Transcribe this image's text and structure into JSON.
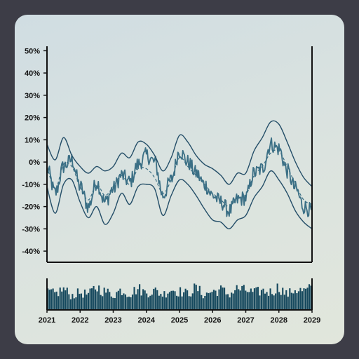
{
  "chart_data": [
    {
      "type": "line",
      "title": "",
      "xlabel": "",
      "ylabel": "",
      "ylim": [
        -45,
        52
      ],
      "yticks": [
        "50%",
        "40%",
        "30%",
        "20%",
        "10%",
        "0%",
        "-10%",
        "-20%",
        "-30%",
        "-40%"
      ],
      "ytick_values": [
        50,
        40,
        30,
        20,
        10,
        0,
        -10,
        -20,
        -30,
        -40
      ],
      "x_domain": [
        2021,
        2029
      ],
      "grid": false,
      "series": [
        {
          "style": "solid-noisy",
          "x": [
            2021.0,
            2021.25,
            2021.5,
            2021.75,
            2022.0,
            2022.25,
            2022.5,
            2022.75,
            2023.0,
            2023.25,
            2023.5,
            2023.75,
            2024.0,
            2024.25,
            2024.5,
            2024.75,
            2025.0,
            2025.25,
            2025.5,
            2025.75,
            2026.0,
            2026.25,
            2026.5,
            2026.75,
            2027.0,
            2027.25,
            2027.5,
            2027.75,
            2028.0,
            2028.25,
            2028.5,
            2028.75,
            2029.0
          ],
          "values": [
            -3,
            -14,
            -2,
            1,
            -11,
            -20,
            -9,
            -18,
            -12,
            -6,
            -9,
            -1,
            3,
            0,
            -15,
            -8,
            5,
            0,
            -5,
            -10,
            -15,
            -18,
            -22,
            -17,
            -16,
            -5,
            -3,
            8,
            6,
            -4,
            -12,
            -20,
            -22
          ]
        },
        {
          "style": "dashed-trend",
          "x": [
            2021.0,
            2021.25,
            2021.5,
            2021.75,
            2022.0,
            2022.25,
            2022.5,
            2022.75,
            2023.0,
            2023.25,
            2023.5,
            2023.75,
            2024.0,
            2024.25,
            2024.5,
            2024.75,
            2025.0,
            2025.25,
            2025.5,
            2025.75,
            2026.0,
            2026.25,
            2026.5,
            2026.75,
            2027.0,
            2027.25,
            2027.5,
            2027.75,
            2028.0,
            2028.25,
            2028.5,
            2028.75,
            2029.0
          ],
          "values": [
            -2,
            -12,
            -1,
            -2,
            -11,
            -17,
            -10,
            -15,
            -11,
            -6,
            -10,
            -3,
            -3,
            -7,
            -14,
            -8,
            2,
            -2,
            -6,
            -10,
            -14,
            -17,
            -20,
            -16,
            -15,
            -6,
            -2,
            4,
            5,
            -2,
            -10,
            -17,
            -19
          ]
        },
        {
          "style": "upper-band",
          "x": [
            2021.0,
            2021.25,
            2021.5,
            2021.75,
            2022.0,
            2022.25,
            2022.5,
            2022.75,
            2023.0,
            2023.25,
            2023.5,
            2023.75,
            2024.0,
            2024.25,
            2024.5,
            2024.75,
            2025.0,
            2025.25,
            2025.5,
            2025.75,
            2026.0,
            2026.25,
            2026.5,
            2026.75,
            2027.0,
            2027.25,
            2027.5,
            2027.75,
            2028.0,
            2028.25,
            2028.5,
            2028.75,
            2029.0
          ],
          "values": [
            8,
            1,
            11,
            3,
            -2,
            -5,
            -2,
            -4,
            -2,
            4,
            2,
            9,
            8,
            3,
            -4,
            2,
            12,
            9,
            3,
            -1,
            -3,
            -6,
            -10,
            -5,
            -5,
            5,
            11,
            18,
            17,
            9,
            0,
            -7,
            -11
          ]
        },
        {
          "style": "lower-band",
          "x": [
            2021.0,
            2021.25,
            2021.5,
            2021.75,
            2022.0,
            2022.25,
            2022.5,
            2022.75,
            2023.0,
            2023.25,
            2023.5,
            2023.75,
            2024.0,
            2024.25,
            2024.5,
            2024.75,
            2025.0,
            2025.25,
            2025.5,
            2025.75,
            2026.0,
            2026.25,
            2026.5,
            2026.75,
            2027.0,
            2027.25,
            2027.5,
            2027.75,
            2028.0,
            2028.25,
            2028.5,
            2028.75,
            2029.0
          ],
          "values": [
            -11,
            -23,
            -10,
            -8,
            -18,
            -25,
            -20,
            -28,
            -23,
            -14,
            -19,
            -11,
            -10,
            -12,
            -24,
            -15,
            -8,
            -10,
            -15,
            -21,
            -26,
            -27,
            -30,
            -26,
            -24,
            -16,
            -11,
            -4,
            -8,
            -14,
            -22,
            -27,
            -30
          ]
        }
      ]
    },
    {
      "type": "bar",
      "title": "",
      "xlabel": "",
      "ylabel": "",
      "ylim": [
        0,
        1
      ],
      "x_domain": [
        2021,
        2029
      ],
      "xticks": [
        "2021",
        "2022",
        "2023",
        "2024",
        "2025",
        "2026",
        "2027",
        "2028",
        "2029"
      ],
      "xtick_values": [
        2021,
        2022,
        2023,
        2024,
        2025,
        2026,
        2027,
        2028,
        2029
      ],
      "x": [
        2021.0,
        2021.25,
        2021.5,
        2021.75,
        2022.0,
        2022.25,
        2022.5,
        2022.75,
        2023.0,
        2023.25,
        2023.5,
        2023.75,
        2024.0,
        2024.25,
        2024.5,
        2024.75,
        2025.0,
        2025.25,
        2025.5,
        2025.75,
        2026.0,
        2026.25,
        2026.5,
        2026.75,
        2027.0,
        2027.25,
        2027.5,
        2027.75,
        2028.0,
        2028.25,
        2028.5,
        2028.75,
        2029.0
      ],
      "values": [
        0.7,
        0.62,
        0.78,
        0.55,
        0.65,
        0.6,
        0.85,
        0.7,
        0.58,
        0.75,
        0.62,
        0.8,
        0.66,
        0.72,
        0.6,
        0.78,
        0.7,
        0.63,
        0.82,
        0.58,
        0.7,
        0.76,
        0.6,
        0.8,
        0.74,
        0.66,
        0.72,
        0.68,
        0.85,
        0.6,
        0.78,
        0.72,
        0.8
      ]
    }
  ],
  "colors": {
    "background": "#3d3d47",
    "panel": "#d6e0df",
    "line": "#3b6f85",
    "band": "#244e68",
    "bars": "#16495e",
    "axis": "#111111"
  }
}
